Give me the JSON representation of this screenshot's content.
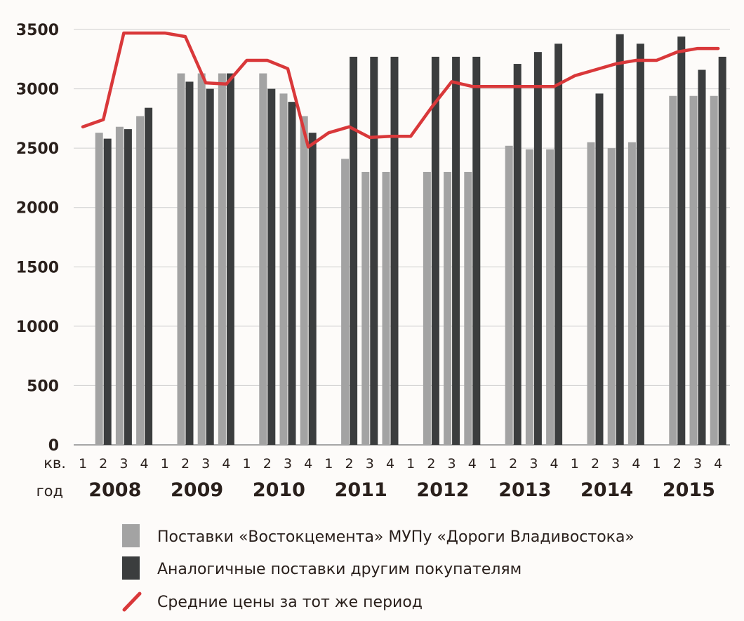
{
  "chart_data": {
    "type": "bar",
    "ylim": [
      0,
      3500
    ],
    "yticks": [
      "0",
      "500",
      "1000",
      "1500",
      "2000",
      "2500",
      "3000",
      "3500"
    ],
    "grid": true,
    "quarter_row_label": "кв.",
    "year_row_label": "год",
    "years": [
      "2008",
      "2009",
      "2010",
      "2011",
      "2012",
      "2013",
      "2014",
      "2015"
    ],
    "quarters": [
      "1",
      "2",
      "3",
      "4"
    ],
    "series": [
      {
        "name": "Поставки «Востокцемента» МУПу «Дороги Владивостока»",
        "kind": "bar",
        "color": "#a3a3a3",
        "values": [
          null,
          2630,
          2680,
          2770,
          null,
          3130,
          3130,
          3130,
          null,
          3130,
          2960,
          2770,
          null,
          2410,
          2300,
          2300,
          null,
          2300,
          2300,
          2300,
          null,
          2520,
          2490,
          2490,
          null,
          2550,
          2500,
          2550,
          null,
          2940,
          2940,
          2940
        ]
      },
      {
        "name": "Аналогичные поставки другим покупателям",
        "kind": "bar",
        "color": "#3b3d3e",
        "values": [
          null,
          2580,
          2660,
          2840,
          null,
          3060,
          3000,
          3130,
          null,
          3000,
          2890,
          2630,
          null,
          3270,
          3270,
          3270,
          null,
          3270,
          3270,
          3270,
          null,
          3210,
          3310,
          3380,
          null,
          2960,
          3460,
          3380,
          null,
          3440,
          3160,
          3270
        ]
      },
      {
        "name": "Средние цены за тот же период",
        "kind": "line",
        "color": "#d9383a",
        "values": [
          2680,
          2740,
          3470,
          3470,
          3470,
          3440,
          3050,
          3040,
          3240,
          3240,
          3170,
          2510,
          2630,
          2680,
          2590,
          2600,
          2600,
          2840,
          3060,
          3020,
          3020,
          3020,
          3020,
          3020,
          3110,
          3160,
          3210,
          3240,
          3240,
          3310,
          3340,
          3340
        ]
      }
    ]
  }
}
